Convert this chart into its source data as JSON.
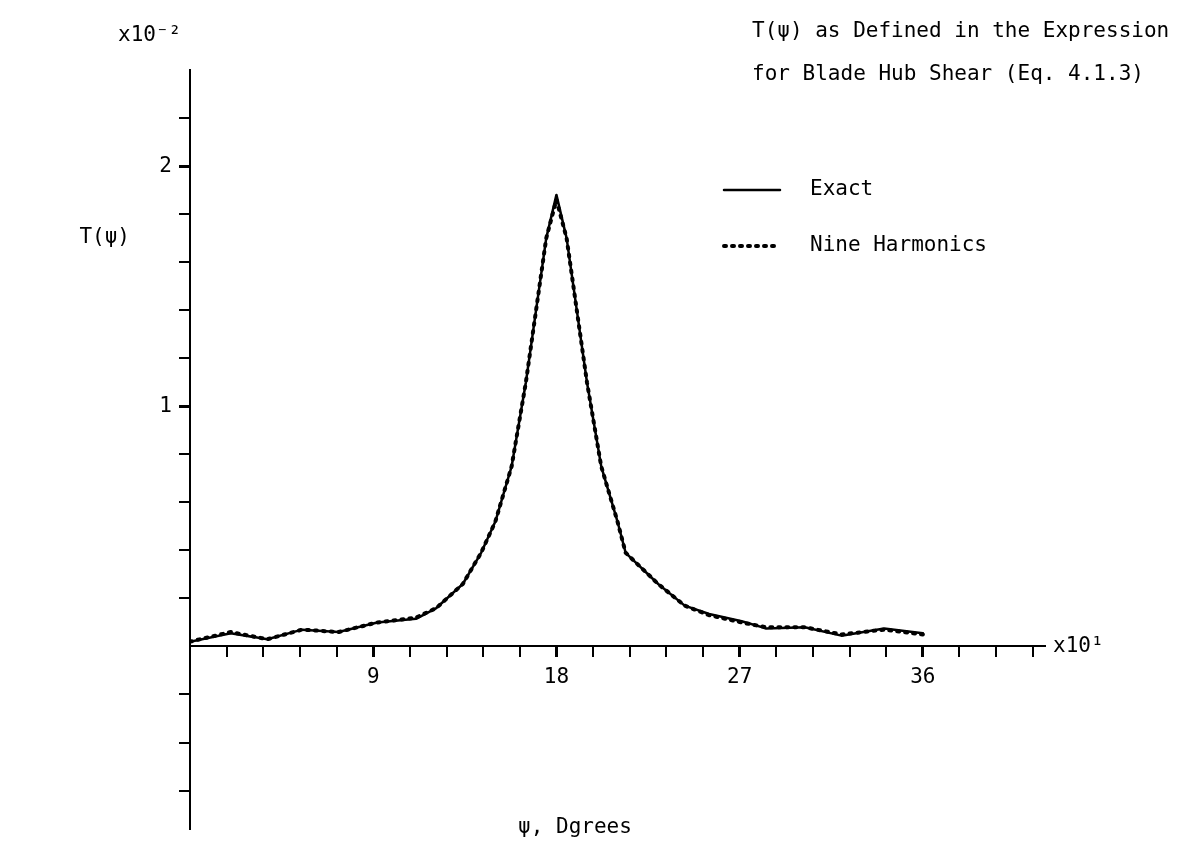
{
  "chart_data": {
    "type": "line",
    "title": "T(ψ) as Defined in the Expression for Blade Hub Shear (Eq. 4.1.3)",
    "xlabel": "ψ, Dgrees",
    "ylabel": "T(ψ)",
    "annotations": [
      "x10⁻²",
      "x10¹"
    ],
    "xlim": [
      0,
      42
    ],
    "ylim": [
      -0.76,
      2.4
    ],
    "xticks": [
      {
        "value": 0,
        "label": null
      },
      {
        "value": 1.8,
        "label": null
      },
      {
        "value": 3.6,
        "label": null
      },
      {
        "value": 5.4,
        "label": null
      },
      {
        "value": 7.2,
        "label": null
      },
      9,
      {
        "value": 10.8,
        "label": null
      },
      {
        "value": 12.6,
        "label": null
      },
      {
        "value": 14.4,
        "label": null
      },
      {
        "value": 16.2,
        "label": null
      },
      18,
      {
        "value": 19.8,
        "label": null
      },
      {
        "value": 21.6,
        "label": null
      },
      {
        "value": 23.4,
        "label": null
      },
      {
        "value": 25.2,
        "label": null
      },
      27,
      {
        "value": 28.8,
        "label": null
      },
      {
        "value": 30.6,
        "label": null
      },
      {
        "value": 32.4,
        "label": null
      },
      {
        "value": 34.2,
        "label": null
      },
      36,
      {
        "value": 37.8,
        "label": null
      },
      {
        "value": 39.6,
        "label": null
      },
      {
        "value": 41.4,
        "label": null
      }
    ],
    "yticks": [
      {
        "value": -0.6,
        "label": null
      },
      {
        "value": -0.4,
        "label": null
      },
      {
        "value": -0.2,
        "label": null
      },
      {
        "value": 0.2,
        "label": null
      },
      {
        "value": 0.4,
        "label": null
      },
      {
        "value": 0.6,
        "label": null
      },
      {
        "value": 0.8,
        "label": null
      },
      1,
      {
        "value": 1.2,
        "label": null
      },
      {
        "value": 1.4,
        "label": null
      },
      {
        "value": 1.6,
        "label": null
      },
      {
        "value": 1.8,
        "label": null
      },
      2,
      {
        "value": 2.2,
        "label": null
      }
    ],
    "legend": "top right",
    "marker": "none",
    "series": [
      {
        "name": "Exact",
        "color": "#000000",
        "line_style": "solid",
        "x": [
          0,
          2,
          3.8,
          5.5,
          7.3,
          9.2,
          11.1,
          12.1,
          13.4,
          14.3,
          15,
          15.8,
          16.5,
          17,
          17.5,
          18,
          18.5,
          19,
          19.5,
          20.2,
          21,
          21.4,
          23,
          24.3,
          25.5,
          27.1,
          28.3,
          30.2,
          32,
          34.1,
          36
        ],
        "values": [
          0.02,
          0.055,
          0.03,
          0.07,
          0.06,
          0.1,
          0.115,
          0.16,
          0.26,
          0.39,
          0.52,
          0.75,
          1.1,
          1.4,
          1.7,
          1.88,
          1.7,
          1.4,
          1.1,
          0.75,
          0.52,
          0.39,
          0.26,
          0.17,
          0.135,
          0.105,
          0.075,
          0.08,
          0.045,
          0.075,
          0.055
        ]
      },
      {
        "name": "Nine Harmonics",
        "color": "#000000",
        "line_style": "dotted",
        "x": [
          0,
          2,
          3.8,
          5.5,
          7.3,
          9.2,
          11.1,
          12.1,
          13.4,
          14.3,
          15,
          15.8,
          16.5,
          17,
          17.5,
          18,
          18.5,
          19,
          19.5,
          20.2,
          21,
          21.4,
          23,
          24.3,
          25.5,
          27.1,
          28.3,
          30.2,
          32,
          34.1,
          36
        ],
        "values": [
          0.02,
          0.06,
          0.03,
          0.07,
          0.06,
          0.1,
          0.12,
          0.16,
          0.26,
          0.39,
          0.52,
          0.75,
          1.1,
          1.4,
          1.7,
          1.86,
          1.7,
          1.4,
          1.1,
          0.75,
          0.52,
          0.39,
          0.26,
          0.17,
          0.13,
          0.1,
          0.08,
          0.08,
          0.05,
          0.07,
          0.05
        ]
      }
    ]
  }
}
